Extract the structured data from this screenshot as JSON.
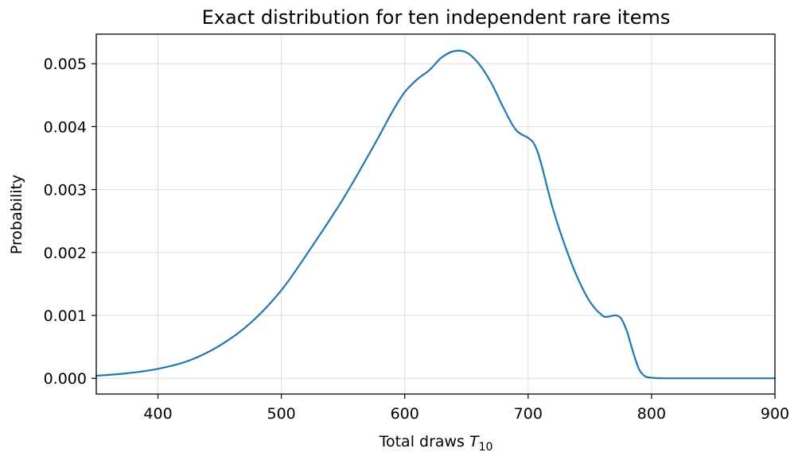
{
  "chart_data": {
    "type": "line",
    "title": "Exact distribution for ten independent rare items",
    "xlabel": "Total draws",
    "xlabel_symbol": "T",
    "xlabel_subscript": "10",
    "ylabel": "Probability",
    "xlim": [
      350,
      900
    ],
    "ylim": [
      -0.00025,
      0.00547
    ],
    "xticks": [
      400,
      500,
      600,
      700,
      800,
      900
    ],
    "yticks": [
      0.0,
      0.001,
      0.002,
      0.003,
      0.004,
      0.005
    ],
    "xtick_labels": [
      "400",
      "500",
      "600",
      "700",
      "800",
      "900"
    ],
    "ytick_labels": [
      "0.000",
      "0.001",
      "0.002",
      "0.003",
      "0.004",
      "0.005"
    ],
    "grid": true,
    "legend": "none",
    "line_color": "#1f77b4",
    "series": [
      {
        "x": [
          350,
          375,
          400,
          425,
          450,
          475,
          500,
          525,
          550,
          575,
          590,
          600,
          610,
          620,
          630,
          640,
          650,
          660,
          670,
          680,
          690,
          700,
          705,
          710,
          720,
          730,
          740,
          750,
          760,
          765,
          770,
          775,
          780,
          785,
          790,
          795,
          800,
          810,
          850,
          900
        ],
        "y": [
          4e-05,
          8e-05,
          0.00015,
          0.00028,
          0.00052,
          0.00088,
          0.0014,
          0.0021,
          0.00285,
          0.0037,
          0.00424,
          0.00455,
          0.00475,
          0.0049,
          0.0051,
          0.0052,
          0.00518,
          0.005,
          0.0047,
          0.0043,
          0.00395,
          0.00382,
          0.00372,
          0.00345,
          0.0027,
          0.0021,
          0.0016,
          0.00122,
          0.001,
          0.00098,
          0.001,
          0.00096,
          0.00075,
          0.00042,
          0.00014,
          3e-05,
          1e-05,
          0.0,
          0.0,
          0.0
        ]
      }
    ]
  }
}
